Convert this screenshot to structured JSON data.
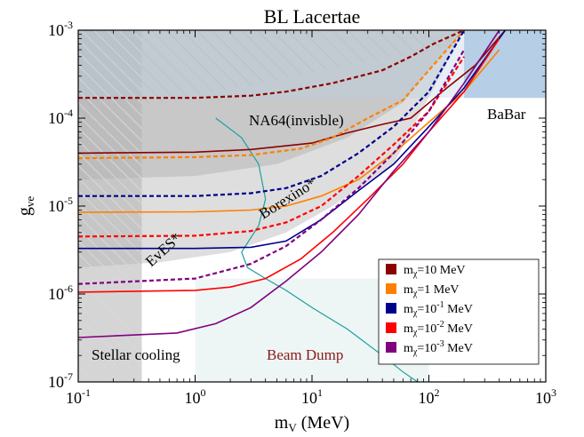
{
  "chart_data": {
    "type": "line",
    "title": "BL Lacertae",
    "xlabel": "m",
    "xlabel_sub": "V",
    "xlabel_unit": " (MeV)",
    "ylabel": "g",
    "ylabel_sub": "ve",
    "x_scale": "log",
    "y_scale": "log",
    "xlim": [
      0.1,
      1000
    ],
    "ylim": [
      1e-07,
      0.001
    ],
    "x_ticks": [
      {
        "value": 0.1,
        "base": "10",
        "exp": "-1"
      },
      {
        "value": 1,
        "base": "10",
        "exp": "0"
      },
      {
        "value": 10,
        "base": "10",
        "exp": "1"
      },
      {
        "value": 100,
        "base": "10",
        "exp": "2"
      },
      {
        "value": 1000,
        "base": "10",
        "exp": "3"
      }
    ],
    "y_ticks": [
      {
        "value": 1e-07,
        "base": "10",
        "exp": "-7"
      },
      {
        "value": 1e-06,
        "base": "10",
        "exp": "-6"
      },
      {
        "value": 1e-05,
        "base": "10",
        "exp": "-5"
      },
      {
        "value": 0.0001,
        "base": "10",
        "exp": "-4"
      },
      {
        "value": 0.001,
        "base": "10",
        "exp": "-3"
      }
    ],
    "grid": false,
    "legend_position": "bottom-right",
    "colors": {
      "stellar_gray": "#b2b2b2",
      "na64_gray": "#c8c8c8",
      "borexino_gray": "#dedede",
      "babar_blue": "#b7cfe6",
      "beam_dump": "#edf6f5",
      "teal": "#1e9e9e",
      "beam_dump_text": "#8b1a1a"
    },
    "regions": [
      {
        "label": "Stellar cooling",
        "x": [
          0.1,
          0.35,
          0.35,
          0.1
        ],
        "y": [
          0.001,
          0.001,
          1e-07,
          1e-07
        ]
      },
      {
        "label": "NA64(invisble)",
        "x": [
          0.1,
          100,
          200,
          0.1
        ],
        "y": [
          0.001,
          0.001,
          0.0007,
          0.0001
        ]
      },
      {
        "label": "Borexino*",
        "x": [
          0.1,
          1,
          5,
          20,
          60,
          100,
          200
        ],
        "y": [
          2e-05,
          2.2e-05,
          3e-05,
          6e-05,
          0.00015,
          0.00035,
          0.001
        ]
      },
      {
        "label": "EvES*",
        "x": [
          0.1,
          0.5,
          2,
          6,
          15,
          50,
          200
        ],
        "y": [
          2e-06,
          2.3e-06,
          3e-06,
          5e-06,
          1e-05,
          3e-05,
          0.001
        ]
      },
      {
        "label": "BaBar",
        "x": [
          200,
          1000,
          1000,
          200
        ],
        "y": [
          0.001,
          0.001,
          0.00017,
          0.00017
        ]
      },
      {
        "label": "Beam Dump",
        "x": [
          1,
          100,
          100,
          1
        ],
        "y": [
          1e-07,
          1e-07,
          1.5e-06,
          1.5e-06
        ]
      }
    ],
    "teal_curve": {
      "x": [
        1.5,
        2.5,
        3.5,
        4,
        3.5,
        2.5,
        2.8,
        4,
        6,
        10,
        20,
        40,
        60,
        80
      ],
      "y": [
        0.0001,
        6e-05,
        3e-05,
        1.2e-05,
        6e-06,
        3e-06,
        2e-06,
        1.5e-06,
        1.1e-06,
        7e-07,
        4e-07,
        2e-07,
        1.3e-07,
        1e-07
      ]
    },
    "series": [
      {
        "name": "m",
        "sub": "χ",
        "suffix": "=10 MeV",
        "color": "#8b0000",
        "solid": {
          "x": [
            0.1,
            1,
            3,
            10,
            20,
            40,
            70,
            130,
            250,
            450
          ],
          "y": [
            4e-05,
            4.1e-05,
            4.4e-05,
            5.2e-05,
            6.8e-05,
            8.5e-05,
            0.0001,
            0.0002,
            0.0004,
            0.001
          ]
        },
        "dashed": {
          "x": [
            0.1,
            1,
            3,
            6,
            15,
            40,
            70,
            110,
            200
          ],
          "y": [
            0.00017,
            0.00017,
            0.00018,
            0.0002,
            0.00025,
            0.00035,
            0.0005,
            0.0007,
            0.001
          ]
        }
      },
      {
        "name": "m",
        "sub": "χ",
        "suffix": "=1 MeV",
        "color": "#ff8000",
        "solid": {
          "x": [
            0.1,
            1,
            3,
            6,
            12,
            25,
            50,
            100,
            200,
            400
          ],
          "y": [
            8.5e-06,
            8.6e-06,
            9e-06,
            1e-05,
            1.3e-05,
            2e-05,
            4e-05,
            9e-05,
            0.0002,
            0.0006
          ]
        },
        "dashed": {
          "x": [
            0.1,
            1,
            3,
            8,
            15,
            30,
            60,
            100,
            200
          ],
          "y": [
            3.5e-05,
            3.6e-05,
            3.8e-05,
            4.5e-05,
            6e-05,
            0.0001,
            0.00016,
            0.00035,
            0.001
          ]
        }
      },
      {
        "name": "m",
        "sub": "χ",
        "suffix": "=10",
        "sup": "-1",
        "suffix2": " MeV",
        "color": "#00008b",
        "solid": {
          "x": [
            0.1,
            1,
            3,
            6,
            12,
            25,
            50,
            100,
            200,
            450
          ],
          "y": [
            3.3e-06,
            3.3e-06,
            3.4e-06,
            4e-06,
            7e-06,
            1.5e-05,
            3e-05,
            8e-05,
            0.00022,
            0.001
          ]
        },
        "dashed": {
          "x": [
            0.1,
            1,
            3,
            6,
            12,
            25,
            50,
            100,
            200
          ],
          "y": [
            1.3e-05,
            1.3e-05,
            1.4e-05,
            1.6e-05,
            2.2e-05,
            4e-05,
            8e-05,
            0.0002,
            0.001
          ]
        }
      },
      {
        "name": "m",
        "sub": "χ",
        "suffix": "=10",
        "sup": "-2",
        "suffix2": " MeV",
        "color": "#ff0000",
        "solid": {
          "x": [
            0.1,
            1,
            2,
            4,
            8,
            15,
            30,
            60,
            100,
            200,
            400
          ],
          "y": [
            1.05e-06,
            1.1e-06,
            1.2e-06,
            1.5e-06,
            2.5e-06,
            5e-06,
            1.2e-05,
            3e-05,
            7e-05,
            0.0002,
            0.0008
          ]
        },
        "dashed": {
          "x": [
            0.1,
            1,
            3,
            6,
            12,
            25,
            50,
            100,
            200
          ],
          "y": [
            4.5e-06,
            4.6e-06,
            5.2e-06,
            6.5e-06,
            1e-05,
            2.2e-05,
            5e-05,
            0.00012,
            0.0005
          ]
        }
      },
      {
        "name": "m",
        "sub": "χ",
        "suffix": "=10",
        "sup": "-3",
        "suffix2": " MeV",
        "color": "#800080",
        "solid": {
          "x": [
            0.1,
            0.7,
            1.5,
            3,
            6,
            12,
            25,
            50,
            100,
            200,
            400
          ],
          "y": [
            3.2e-07,
            3.6e-07,
            4.6e-07,
            7e-07,
            1.4e-06,
            3e-06,
            8e-06,
            2.5e-05,
            7e-05,
            0.00025,
            0.001
          ]
        },
        "dashed": {
          "x": [
            0.1,
            1,
            3,
            6,
            12,
            25,
            50,
            100,
            200
          ],
          "y": [
            1.3e-06,
            1.5e-06,
            2.2e-06,
            3.5e-06,
            7e-06,
            1.6e-05,
            4e-05,
            0.00012,
            0.0006
          ]
        }
      }
    ]
  }
}
